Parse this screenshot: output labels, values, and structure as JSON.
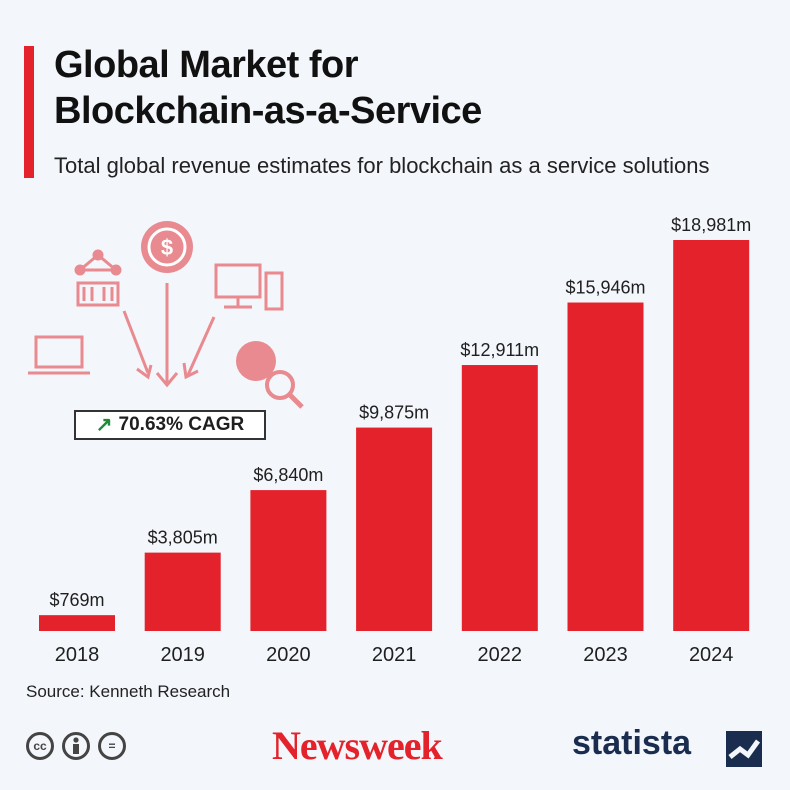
{
  "header": {
    "title_line1": "Global Market for",
    "title_line2": "Blockchain-as-a-Service",
    "subtitle": "Total global revenue estimates for blockchain as a service solutions"
  },
  "callout": {
    "cagr_text": "70.63% CAGR"
  },
  "source": "Source: Kenneth Research",
  "footer": {
    "license_icons": [
      "cc-icon",
      "attribution-icon",
      "no-derivatives-icon"
    ],
    "license_icon_text": [
      "cc",
      "",
      "="
    ],
    "newsweek_logo": "Newsweek",
    "statista_logo": "statista"
  },
  "colors": {
    "bar": "#e3222b",
    "accent": "#e3222b",
    "background": "#f3f6fa",
    "cagr_arrow": "#1e8a3a",
    "statista_brand": "#1a2d4f"
  },
  "chart_data": {
    "type": "bar",
    "categories": [
      "2018",
      "2019",
      "2020",
      "2021",
      "2022",
      "2023",
      "2024"
    ],
    "values": [
      769,
      3805,
      6840,
      9875,
      12911,
      15946,
      18981
    ],
    "data_labels": [
      "$769m",
      "$3,805m",
      "$6,840m",
      "$9,875m",
      "$12,911m",
      "$15,946m",
      "$18,981m"
    ],
    "unit": "m",
    "title": "Global Market for Blockchain-as-a-Service",
    "subtitle": "Total global revenue estimates for blockchain as a service solutions",
    "xlabel": "",
    "ylabel": "",
    "ylim": [
      0,
      18981
    ],
    "grid": false,
    "legend": "none"
  }
}
